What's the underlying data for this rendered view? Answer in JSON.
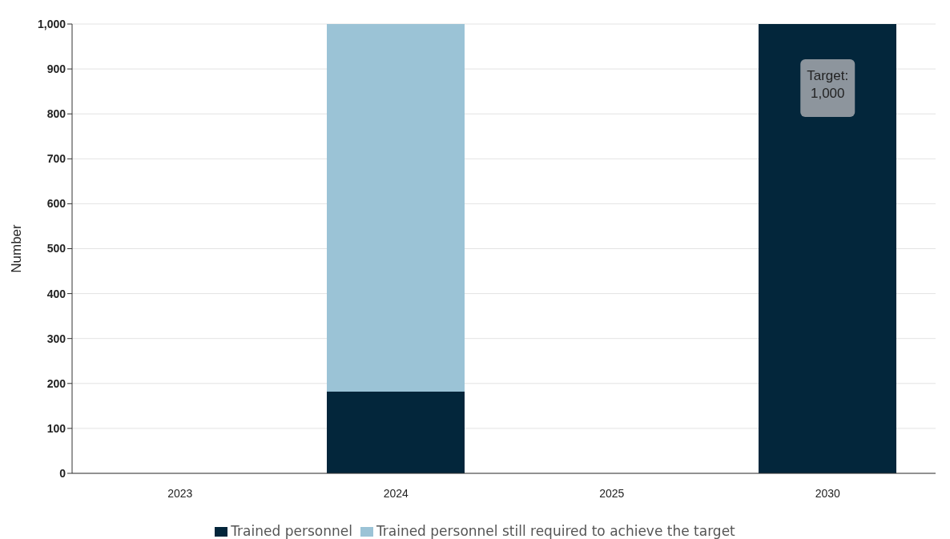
{
  "chart_data": {
    "type": "bar",
    "stacked": true,
    "ylabel": "Number",
    "categories": [
      "2023",
      "2024",
      "2025",
      "2030"
    ],
    "series": [
      {
        "name": "Trained personnel",
        "color": "#03263b",
        "values": [
          null,
          182,
          null,
          1000
        ]
      },
      {
        "name": "Trained personnel still required to achieve the target",
        "color": "#9bc3d6",
        "values": [
          null,
          818,
          null,
          null
        ]
      }
    ],
    "ylim": [
      0,
      1000
    ],
    "yticks": [
      {
        "value": 0,
        "label": "0"
      },
      {
        "value": 100,
        "label": "100"
      },
      {
        "value": 200,
        "label": "200"
      },
      {
        "value": 300,
        "label": "300"
      },
      {
        "value": 400,
        "label": "400"
      },
      {
        "value": 500,
        "label": "500"
      },
      {
        "value": 600,
        "label": "600"
      },
      {
        "value": 700,
        "label": "700"
      },
      {
        "value": 800,
        "label": "800"
      },
      {
        "value": 900,
        "label": "900"
      },
      {
        "value": 1000,
        "label": "1,000"
      }
    ],
    "grid": "y",
    "legend": "bottom",
    "annotations": [
      "Target: 1,000"
    ]
  }
}
